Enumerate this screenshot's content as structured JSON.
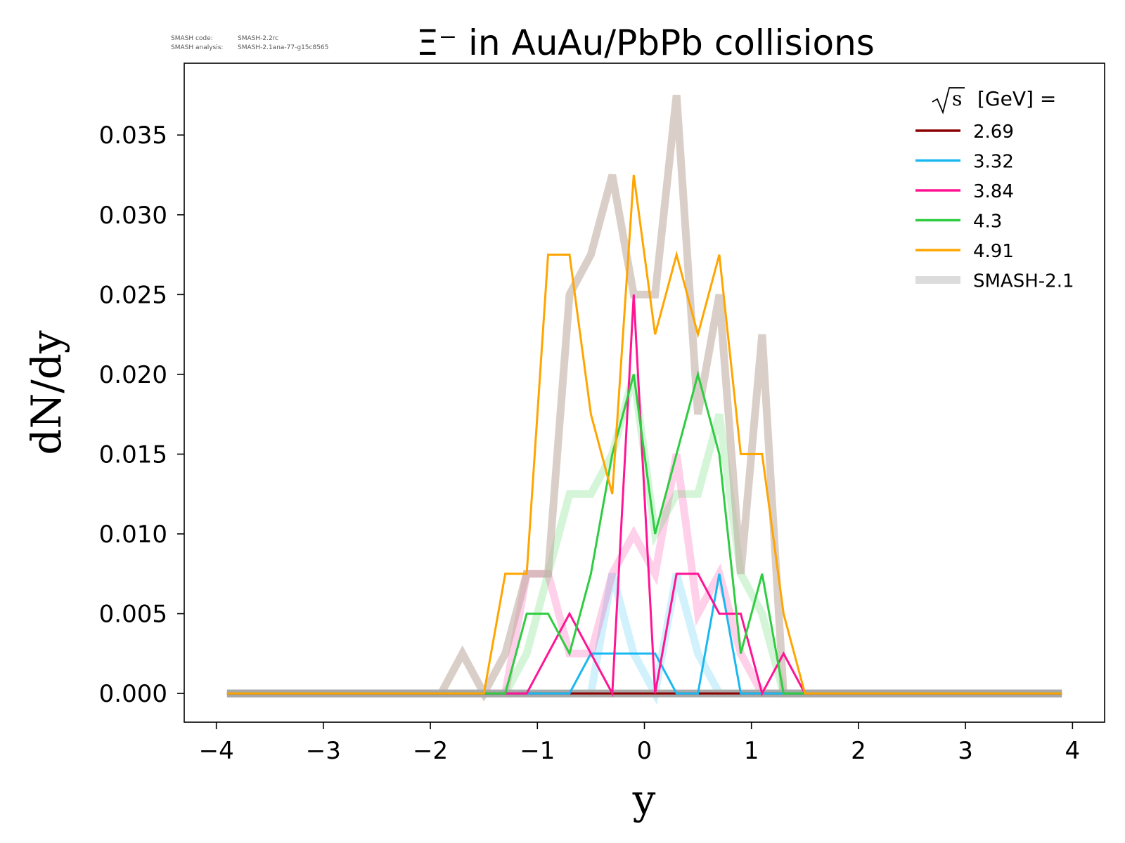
{
  "meta": {
    "code_label": "SMASH code:",
    "code_value": "SMASH-2.2rc",
    "analysis_label": "SMASH analysis:",
    "analysis_value": "SMASH-2.1ana-77-g15c8565"
  },
  "chart_data": {
    "type": "line",
    "title": "Ξ⁻ in AuAu/PbPb collisions",
    "xlabel": "y",
    "ylabel": "dN/dy",
    "xlim": [
      -4.3,
      4.3
    ],
    "ylim": [
      -0.0018,
      0.0395
    ],
    "xticks": [
      -4,
      -3,
      -2,
      -1,
      0,
      1,
      2,
      3,
      4
    ],
    "xtick_labels": [
      "−4",
      "−3",
      "−2",
      "−1",
      "0",
      "1",
      "2",
      "3",
      "4"
    ],
    "yticks": [
      0.0,
      0.005,
      0.01,
      0.015,
      0.02,
      0.025,
      0.03,
      0.035
    ],
    "ytick_labels": [
      "0.000",
      "0.005",
      "0.010",
      "0.015",
      "0.020",
      "0.025",
      "0.030",
      "0.035"
    ],
    "grid": false,
    "legend": {
      "title_prefix": "s",
      "title_text": "[GeV] =",
      "placement": "top-right",
      "entries": [
        {
          "label": "2.69",
          "color": "#8b0000"
        },
        {
          "label": "3.32",
          "color": "#1ab8f0"
        },
        {
          "label": "3.84",
          "color": "#ff1493"
        },
        {
          "label": "4.3",
          "color": "#2ecc40"
        },
        {
          "label": "4.91",
          "color": "#ffa500"
        },
        {
          "label": "SMASH-2.1",
          "color": "#dcdcdc"
        }
      ]
    },
    "x": [
      -3.9,
      -3.7,
      -3.5,
      -3.3,
      -3.1,
      -2.9,
      -2.7,
      -2.5,
      -2.3,
      -2.1,
      -1.9,
      -1.7,
      -1.5,
      -1.3,
      -1.1,
      -0.9,
      -0.7,
      -0.5,
      -0.3,
      -0.1,
      0.1,
      0.3,
      0.5,
      0.7,
      0.9,
      1.1,
      1.3,
      1.5,
      1.7,
      1.9,
      2.1,
      2.3,
      2.5,
      2.7,
      2.9,
      3.1,
      3.3,
      3.5,
      3.7,
      3.9
    ],
    "reference_series": [
      {
        "name": "3.32",
        "color": "#1ab8f0",
        "values": [
          0,
          0,
          0,
          0,
          0,
          0,
          0,
          0,
          0,
          0,
          0,
          0,
          0,
          0,
          0,
          0,
          0,
          0,
          0.0075,
          0.0025,
          0,
          0.0075,
          0.0025,
          0,
          0,
          0,
          0,
          0,
          0,
          0,
          0,
          0,
          0,
          0,
          0,
          0,
          0,
          0,
          0,
          0
        ]
      },
      {
        "name": "3.84",
        "color": "#ff1493",
        "values": [
          0,
          0,
          0,
          0,
          0,
          0,
          0,
          0,
          0,
          0,
          0,
          0,
          0,
          0,
          0.0075,
          0.0075,
          0.0025,
          0.0025,
          0.0075,
          0.01,
          0.0075,
          0.015,
          0.005,
          0.0075,
          0.0025,
          0,
          0,
          0,
          0,
          0,
          0,
          0,
          0,
          0,
          0,
          0,
          0,
          0,
          0,
          0
        ]
      },
      {
        "name": "4.3",
        "color": "#2ecc40",
        "values": [
          0,
          0,
          0,
          0,
          0,
          0,
          0,
          0,
          0,
          0,
          0,
          0,
          0,
          0,
          0.0025,
          0.0075,
          0.0125,
          0.0125,
          0.015,
          0.02,
          0.01,
          0.0125,
          0.0125,
          0.0175,
          0.0075,
          0.005,
          0,
          0,
          0,
          0,
          0,
          0,
          0,
          0,
          0,
          0,
          0,
          0,
          0,
          0
        ]
      },
      {
        "name": "4.91",
        "color": "#bca89a",
        "values": [
          0,
          0,
          0,
          0,
          0,
          0,
          0,
          0,
          0,
          0,
          0,
          0.0025,
          0,
          0.0025,
          0.0075,
          0.0075,
          0.025,
          0.0275,
          0.0325,
          0.025,
          0.025,
          0.0375,
          0.0175,
          0.025,
          0.0075,
          0.0225,
          0,
          0,
          0,
          0,
          0,
          0,
          0,
          0,
          0,
          0,
          0,
          0,
          0,
          0
        ]
      }
    ],
    "series": [
      {
        "name": "2.69",
        "color": "#8b0000",
        "values": [
          0,
          0,
          0,
          0,
          0,
          0,
          0,
          0,
          0,
          0,
          0,
          0,
          0,
          0,
          0,
          0,
          0,
          0,
          0,
          0,
          0,
          0,
          0,
          0,
          0,
          0,
          0,
          0,
          0,
          0,
          0,
          0,
          0,
          0,
          0,
          0,
          0,
          0,
          0,
          0
        ]
      },
      {
        "name": "3.32",
        "color": "#1ab8f0",
        "values": [
          0,
          0,
          0,
          0,
          0,
          0,
          0,
          0,
          0,
          0,
          0,
          0,
          0,
          0,
          0,
          0,
          0,
          0.0025,
          0.0025,
          0.0025,
          0.0025,
          0,
          0,
          0.0075,
          0,
          0,
          0,
          0,
          0,
          0,
          0,
          0,
          0,
          0,
          0,
          0,
          0,
          0,
          0,
          0
        ]
      },
      {
        "name": "3.84",
        "color": "#ff1493",
        "values": [
          0,
          0,
          0,
          0,
          0,
          0,
          0,
          0,
          0,
          0,
          0,
          0,
          0,
          0,
          0,
          0.0025,
          0.005,
          0.0025,
          0,
          0.025,
          0,
          0.0075,
          0.0075,
          0.005,
          0.005,
          0,
          0.0025,
          0,
          0,
          0,
          0,
          0,
          0,
          0,
          0,
          0,
          0,
          0,
          0,
          0
        ]
      },
      {
        "name": "4.3",
        "color": "#2ecc40",
        "values": [
          0,
          0,
          0,
          0,
          0,
          0,
          0,
          0,
          0,
          0,
          0,
          0,
          0,
          0,
          0.005,
          0.005,
          0.0025,
          0.0075,
          0.015,
          0.02,
          0.01,
          0.015,
          0.02,
          0.015,
          0.0025,
          0.0075,
          0,
          0,
          0,
          0,
          0,
          0,
          0,
          0,
          0,
          0,
          0,
          0,
          0,
          0
        ]
      },
      {
        "name": "4.91",
        "color": "#ffa500",
        "values": [
          0,
          0,
          0,
          0,
          0,
          0,
          0,
          0,
          0,
          0,
          0,
          0,
          0,
          0.0075,
          0.0075,
          0.0275,
          0.0275,
          0.0175,
          0.0125,
          0.0325,
          0.0225,
          0.0275,
          0.0225,
          0.0275,
          0.015,
          0.015,
          0.005,
          0,
          0,
          0,
          0,
          0,
          0,
          0,
          0,
          0,
          0,
          0,
          0,
          0
        ]
      }
    ]
  }
}
